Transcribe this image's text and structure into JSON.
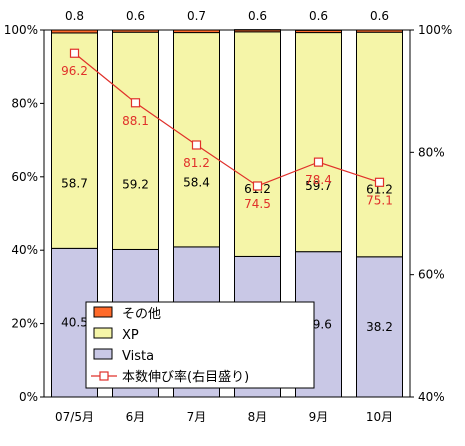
{
  "chart_data": {
    "type": "bar",
    "stacked": true,
    "categories": [
      "07/5月",
      "6月",
      "7月",
      "8月",
      "9月",
      "10月"
    ],
    "series": [
      {
        "name": "Vista",
        "values": [
          40.5,
          40.2,
          40.9,
          38.3,
          39.6,
          38.2
        ],
        "color": "#c9c8e6"
      },
      {
        "name": "XP",
        "values": [
          58.7,
          59.2,
          58.4,
          61.2,
          59.7,
          61.2
        ],
        "color": "#f5f5a8"
      },
      {
        "name": "その他",
        "values": [
          0.8,
          0.6,
          0.7,
          0.6,
          0.6,
          0.6
        ],
        "color": "#ff6a2a"
      }
    ],
    "line_series": {
      "name": "本数伸び率(右目盛り)",
      "axis": "right",
      "values": [
        96.2,
        88.1,
        81.2,
        74.5,
        78.4,
        75.1
      ],
      "color": "#e0302a"
    },
    "left_axis": {
      "range": [
        0,
        100
      ],
      "ticks": [
        "0%",
        "20%",
        "40%",
        "60%",
        "80%",
        "100%"
      ]
    },
    "right_axis": {
      "range": [
        40,
        100
      ],
      "ticks": [
        "40%",
        "60%",
        "80%",
        "100%"
      ]
    },
    "legend": {
      "placement": "bottom-left",
      "order": [
        "その他",
        "XP",
        "Vista",
        "本数伸び率(右目盛り)"
      ]
    },
    "title": "",
    "xlabel": "",
    "ylabel": ""
  }
}
